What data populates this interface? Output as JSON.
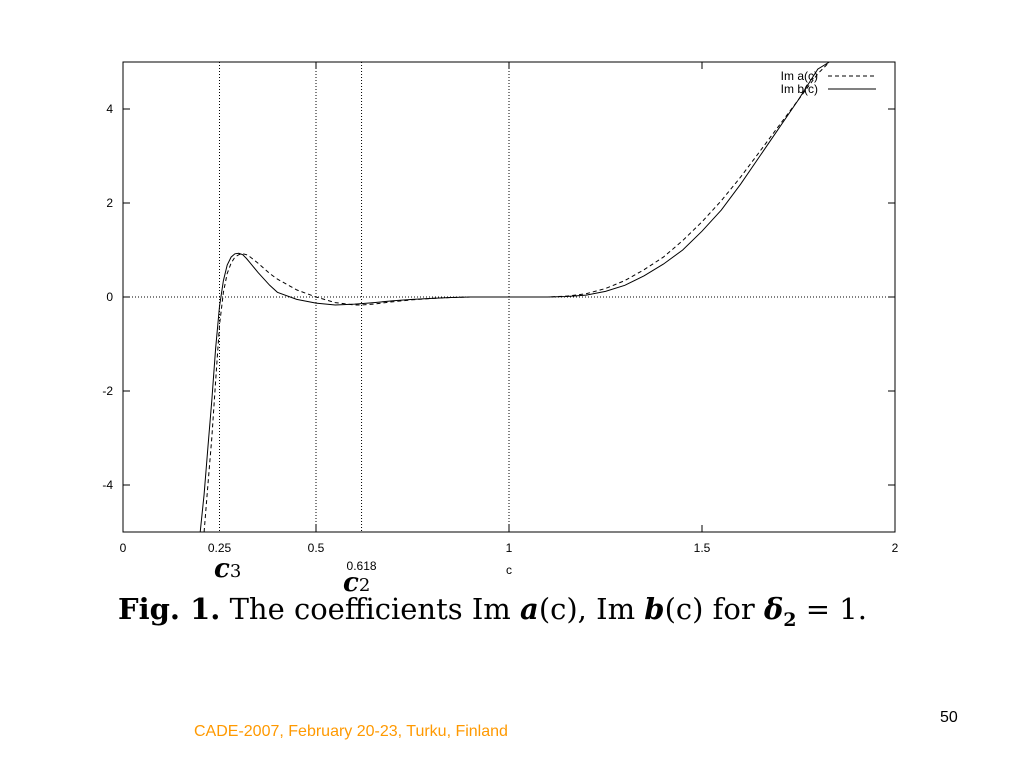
{
  "theme": {
    "footer_color": "#ff9900",
    "text_color": "#000000"
  },
  "chart_data": {
    "type": "line",
    "xlabel": "c",
    "ylabel": "",
    "xlim": [
      0,
      2
    ],
    "ylim": [
      -5,
      5
    ],
    "x_ticks": [
      0,
      0.5,
      1,
      1.5,
      2
    ],
    "x_tick_labels": [
      "0",
      "0.5",
      "1",
      "1.5",
      "2"
    ],
    "y_ticks": [
      -4,
      -2,
      0,
      2,
      4
    ],
    "y_tick_labels": [
      "-4",
      "-2",
      "0",
      "2",
      "4"
    ],
    "extra_tick_labels": [
      {
        "x": 0.25,
        "text": "0.25"
      },
      {
        "x": 0.618,
        "text": "0.618"
      }
    ],
    "vertical_lines": [
      0.25,
      0.5,
      0.618,
      1
    ],
    "zero_line": true,
    "legend_placement": "top-right",
    "series": [
      {
        "name": "Im a(c)",
        "style": "dashed",
        "x": [
          0.21,
          0.22,
          0.23,
          0.24,
          0.25,
          0.26,
          0.27,
          0.28,
          0.29,
          0.3,
          0.31,
          0.32,
          0.33,
          0.35,
          0.38,
          0.4,
          0.45,
          0.5,
          0.55,
          0.6,
          0.618,
          0.65,
          0.7,
          0.75,
          0.8,
          0.85,
          0.9,
          0.95,
          1.0,
          1.1,
          1.15,
          1.2,
          1.25,
          1.3,
          1.35,
          1.4,
          1.45,
          1.5,
          1.55,
          1.6,
          1.65,
          1.7,
          1.75,
          1.8,
          1.83,
          1.85
        ],
        "y": [
          -5.0,
          -4.0,
          -3.0,
          -1.8,
          -0.6,
          0.1,
          0.5,
          0.72,
          0.85,
          0.9,
          0.92,
          0.9,
          0.85,
          0.72,
          0.5,
          0.38,
          0.15,
          0.0,
          -0.12,
          -0.17,
          -0.17,
          -0.15,
          -0.1,
          -0.06,
          -0.03,
          -0.01,
          0.0,
          0.0,
          0.0,
          0.0,
          0.02,
          0.07,
          0.18,
          0.35,
          0.58,
          0.85,
          1.2,
          1.6,
          2.05,
          2.55,
          3.1,
          3.65,
          4.2,
          4.75,
          5.0,
          5.0
        ]
      },
      {
        "name": "Im b(c)",
        "style": "solid",
        "x": [
          0.2,
          0.21,
          0.22,
          0.23,
          0.24,
          0.25,
          0.26,
          0.27,
          0.28,
          0.29,
          0.3,
          0.31,
          0.32,
          0.33,
          0.35,
          0.38,
          0.4,
          0.45,
          0.5,
          0.55,
          0.6,
          0.618,
          0.65,
          0.7,
          0.75,
          0.8,
          0.85,
          0.9,
          0.95,
          1.0,
          1.1,
          1.15,
          1.2,
          1.25,
          1.3,
          1.35,
          1.4,
          1.45,
          1.5,
          1.55,
          1.6,
          1.65,
          1.7,
          1.75,
          1.8,
          1.83,
          1.85
        ],
        "y": [
          -5.0,
          -4.2,
          -3.2,
          -2.2,
          -1.1,
          -0.2,
          0.35,
          0.68,
          0.85,
          0.92,
          0.93,
          0.9,
          0.82,
          0.72,
          0.52,
          0.25,
          0.1,
          -0.05,
          -0.13,
          -0.17,
          -0.15,
          -0.14,
          -0.12,
          -0.08,
          -0.05,
          -0.03,
          -0.01,
          0.0,
          0.0,
          0.0,
          0.0,
          0.01,
          0.04,
          0.12,
          0.25,
          0.45,
          0.7,
          1.0,
          1.4,
          1.85,
          2.4,
          3.0,
          3.6,
          4.2,
          4.85,
          5.0,
          5.0
        ]
      }
    ]
  },
  "annotations": {
    "c3": {
      "letter": "c",
      "subscript": "3"
    },
    "c2": {
      "letter": "c",
      "subscript": "2"
    }
  },
  "caption": {
    "fig": "Fig. 1.",
    "pre": " The coefficients Im ",
    "a": "a",
    "a_arg": "(c), Im ",
    "b": "b",
    "b_arg": "(c) for ",
    "delta": "δ",
    "delta_sub": "2",
    "tail": " = 1."
  },
  "slide_number": "50",
  "footer": "CADE-2007, February 20-23, Turku, Finland"
}
